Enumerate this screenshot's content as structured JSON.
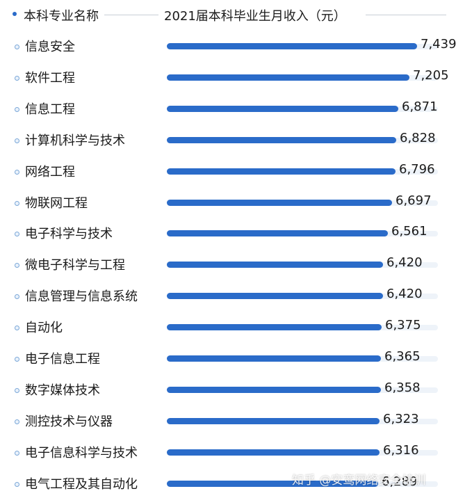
{
  "chart_data": {
    "type": "bar",
    "orientation": "horizontal",
    "category_header": "本科专业名称",
    "value_header": "2021届本科毕业生月收入（元）",
    "categories": [
      "信息安全",
      "软件工程",
      "信息工程",
      "计算机科学与技术",
      "网络工程",
      "物联网工程",
      "电子科学与技术",
      "微电子科学与工程",
      "信息管理与信息系统",
      "自动化",
      "电子信息工程",
      "数字媒体技术",
      "测控技术与仪器",
      "电子信息科学与技术",
      "电气工程及其自动化"
    ],
    "values": [
      7439,
      7205,
      6871,
      6828,
      6796,
      6697,
      6561,
      6420,
      6420,
      6375,
      6365,
      6358,
      6323,
      6316,
      6289
    ],
    "value_labels": [
      "7,439",
      "7,205",
      "6,871",
      "6,828",
      "6,796",
      "6,697",
      "6,561",
      "6,420",
      "6,420",
      "6,375",
      "6,365",
      "6,358",
      "6,323",
      "6,316",
      "6,289"
    ],
    "bar_color": "#2a6bc9",
    "track_color": "#eef3f9",
    "grid": false,
    "legend": "none"
  },
  "watermark": "知乎 @安鸾网络安全培训"
}
